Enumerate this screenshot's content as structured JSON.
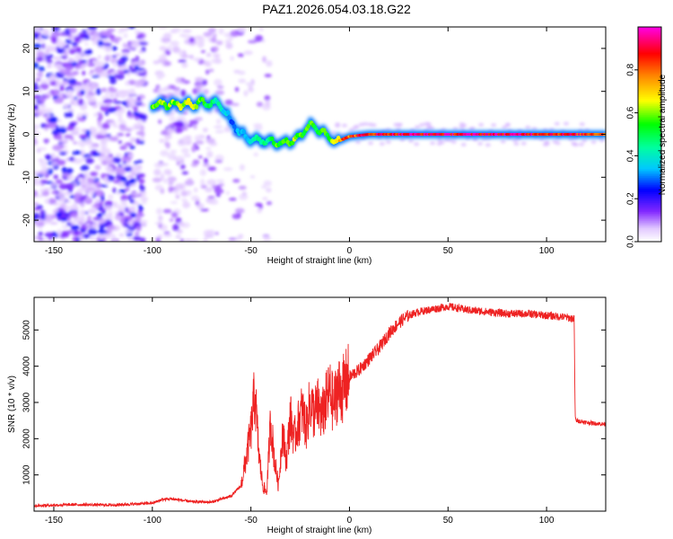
{
  "title": "PAZ1.2026.054.03.18.G22",
  "chart_data": [
    {
      "type": "heatmap",
      "name": "spectrogram",
      "xlabel": "Height of straight line (km)",
      "ylabel": "Frequency (Hz)",
      "xlim": [
        -160,
        130
      ],
      "ylim": [
        -25,
        25
      ],
      "xticks": [
        -150,
        -100,
        -50,
        0,
        50,
        100
      ],
      "yticks": [
        -20,
        -10,
        0,
        10,
        20
      ],
      "colorbar": {
        "label": "Normalized spectral amplitude",
        "range": [
          0,
          1
        ],
        "ticks": [
          0.0,
          0.2,
          0.4,
          0.6,
          0.8
        ],
        "colors": [
          "#ffffff",
          "#d9b3ff",
          "#7a00ff",
          "#0000ff",
          "#00ffff",
          "#00ff00",
          "#ffff00",
          "#ff8000",
          "#ff0000",
          "#ff00ff"
        ]
      },
      "signal_track": [
        {
          "x": -100,
          "freq": 7.0,
          "amp": 0.6
        },
        {
          "x": -90,
          "freq": 7.0,
          "amp": 0.6
        },
        {
          "x": -80,
          "freq": 7.0,
          "amp": 0.65
        },
        {
          "x": -70,
          "freq": 7.5,
          "amp": 0.5
        },
        {
          "x": -65,
          "freq": 6.5,
          "amp": 0.4
        },
        {
          "x": -60,
          "freq": 3.0,
          "amp": 0.3
        },
        {
          "x": -55,
          "freq": 0.0,
          "amp": 0.35
        },
        {
          "x": -50,
          "freq": -1.0,
          "amp": 0.4
        },
        {
          "x": -45,
          "freq": -1.5,
          "amp": 0.45
        },
        {
          "x": -40,
          "freq": -1.5,
          "amp": 0.5
        },
        {
          "x": -35,
          "freq": -2.0,
          "amp": 0.6
        },
        {
          "x": -30,
          "freq": -1.5,
          "amp": 0.65
        },
        {
          "x": -25,
          "freq": -0.5,
          "amp": 0.6
        },
        {
          "x": -20,
          "freq": 2.5,
          "amp": 0.55
        },
        {
          "x": -15,
          "freq": 1.0,
          "amp": 0.55
        },
        {
          "x": -10,
          "freq": -1.0,
          "amp": 0.6
        },
        {
          "x": -5,
          "freq": -1.5,
          "amp": 0.8
        },
        {
          "x": 0,
          "freq": -0.5,
          "amp": 0.85
        },
        {
          "x": 10,
          "freq": 0.0,
          "amp": 0.9
        },
        {
          "x": 30,
          "freq": 0.0,
          "amp": 0.95
        },
        {
          "x": 50,
          "freq": 0.0,
          "amp": 0.95
        },
        {
          "x": 70,
          "freq": 0.0,
          "amp": 0.95
        },
        {
          "x": 90,
          "freq": 0.0,
          "amp": 0.95
        },
        {
          "x": 110,
          "freq": 0.0,
          "amp": 0.9
        },
        {
          "x": 130,
          "freq": 0.0,
          "amp": 0.85
        }
      ]
    },
    {
      "type": "line",
      "name": "snr",
      "xlabel": "Height of straight line (km)",
      "ylabel": "SNR (10 * v/v)",
      "xlim": [
        -160,
        130
      ],
      "ylim": [
        0,
        5900
      ],
      "xticks": [
        -150,
        -100,
        -50,
        0,
        50,
        100
      ],
      "yticks": [
        1000,
        2000,
        3000,
        4000,
        5000
      ],
      "color": "#ee2222",
      "x": [
        -160,
        -140,
        -120,
        -100,
        -95,
        -90,
        -80,
        -70,
        -65,
        -60,
        -55,
        -50,
        -48,
        -46,
        -44,
        -42,
        -40,
        -38,
        -36,
        -34,
        -32,
        -30,
        -28,
        -26,
        -24,
        -22,
        -20,
        -18,
        -16,
        -14,
        -12,
        -10,
        -8,
        -6,
        -4,
        -2,
        0,
        5,
        10,
        15,
        20,
        25,
        30,
        35,
        40,
        45,
        50,
        55,
        60,
        70,
        80,
        90,
        100,
        110,
        114,
        114.5,
        115,
        120,
        125,
        130
      ],
      "y": [
        150,
        180,
        170,
        220,
        320,
        340,
        260,
        250,
        330,
        420,
        700,
        2200,
        3300,
        1600,
        700,
        500,
        2500,
        1400,
        700,
        2200,
        1400,
        2600,
        2000,
        2400,
        2800,
        2300,
        3000,
        2700,
        2900,
        2600,
        3000,
        3300,
        2900,
        3400,
        3300,
        3500,
        3700,
        3900,
        4200,
        4500,
        4900,
        5200,
        5400,
        5500,
        5550,
        5600,
        5650,
        5600,
        5550,
        5500,
        5450,
        5450,
        5400,
        5350,
        5300,
        2600,
        2500,
        2450,
        2420,
        2400
      ]
    }
  ]
}
